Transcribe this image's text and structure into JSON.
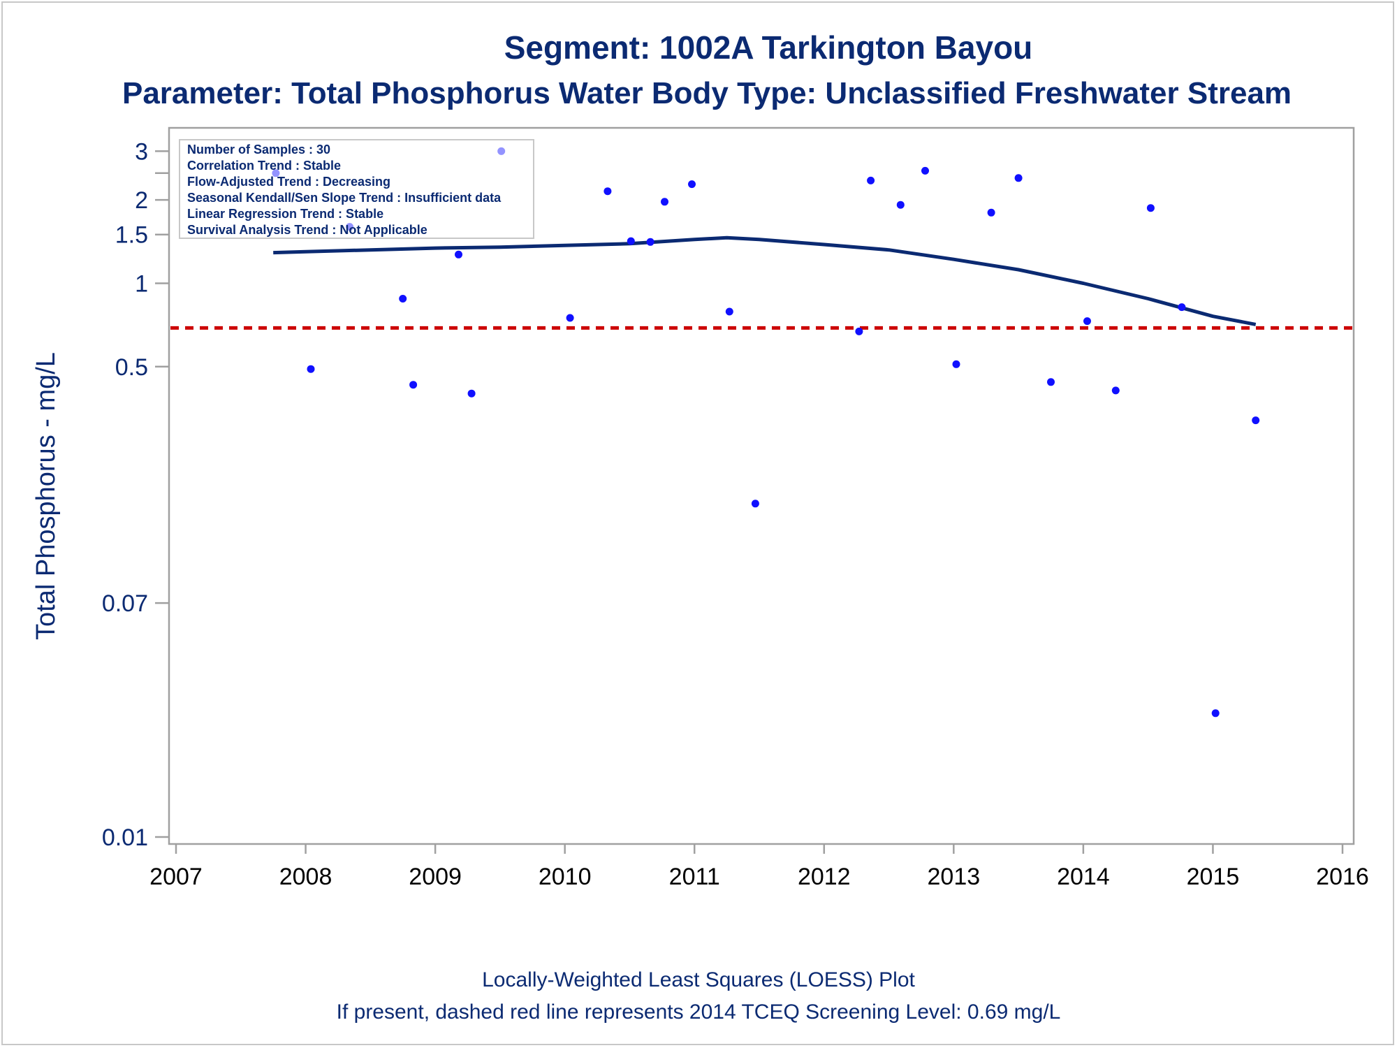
{
  "titles": {
    "line1": "Segment: 1002A  Tarkington Bayou",
    "line2": "Parameter: Total Phosphorus   Water Body Type: Unclassified Freshwater Stream"
  },
  "footnotes": {
    "line1": "Locally-Weighted Least Squares (LOESS) Plot",
    "line2": "If present, dashed red line represents 2014 TCEQ Screening Level: 0.69 mg/L"
  },
  "inset": {
    "lines": [
      "Number of Samples : 30",
      "Correlation Trend : Stable",
      "Flow-Adjusted Trend : Decreasing",
      "Seasonal Kendall/Sen Slope Trend : Insufficient data",
      "Linear Regression Trend : Stable",
      "Survival Analysis Trend : Not Applicable"
    ]
  },
  "colors": {
    "title": "#0b2a72",
    "points": "#1010ff",
    "loess": "#0b2a72",
    "screening_line": "#cc0000",
    "axis": "#a0a0a0"
  },
  "chart_data": {
    "type": "scatter",
    "ylabel": "Total Phosphorus - mg/L",
    "xlabel": "",
    "yscale": "log",
    "xlim": [
      2007,
      2016
    ],
    "ylim": [
      0.01,
      3.3
    ],
    "xticks": [
      2007,
      2008,
      2009,
      2010,
      2011,
      2012,
      2013,
      2014,
      2015,
      2016
    ],
    "yticks": [
      {
        "value": 0.01,
        "label": "0.01"
      },
      {
        "value": 0.07,
        "label": "0.07"
      },
      {
        "value": 0.5,
        "label": "0.5"
      },
      {
        "value": 1,
        "label": "1"
      },
      {
        "value": 1.5,
        "label": "1.5"
      },
      {
        "value": 2,
        "label": "2"
      },
      {
        "value": 2.5,
        "label": ""
      },
      {
        "value": 3,
        "label": "3"
      }
    ],
    "screening_level": 0.69,
    "series": [
      {
        "type": "scatter",
        "x": [
          2007.77,
          2008.04,
          2008.34,
          2008.75,
          2008.83,
          2009.18,
          2009.28,
          2009.51,
          2010.04,
          2010.33,
          2010.51,
          2010.66,
          2010.77,
          2010.98,
          2011.27,
          2011.47,
          2012.27,
          2012.36,
          2012.59,
          2012.78,
          2013.02,
          2013.29,
          2013.5,
          2013.75,
          2014.03,
          2014.25,
          2014.52,
          2014.76,
          2015.02,
          2015.33
        ],
        "y": [
          2.5,
          0.49,
          1.6,
          0.88,
          0.43,
          1.27,
          0.4,
          3.0,
          0.75,
          2.15,
          1.42,
          1.41,
          1.97,
          2.28,
          0.79,
          0.16,
          0.67,
          2.35,
          1.92,
          2.55,
          0.51,
          1.8,
          2.4,
          0.44,
          0.73,
          0.41,
          1.87,
          0.82,
          0.028,
          0.32
        ]
      },
      {
        "type": "line",
        "x": [
          2007.75,
          2008.0,
          2008.5,
          2009.0,
          2009.5,
          2010.0,
          2010.5,
          2011.0,
          2011.25,
          2011.5,
          2012.0,
          2012.5,
          2013.0,
          2013.5,
          2014.0,
          2014.5,
          2015.0,
          2015.33
        ],
        "y": [
          1.29,
          1.3,
          1.32,
          1.34,
          1.35,
          1.37,
          1.39,
          1.44,
          1.46,
          1.44,
          1.38,
          1.32,
          1.22,
          1.12,
          1.0,
          0.88,
          0.76,
          0.71
        ]
      }
    ]
  }
}
